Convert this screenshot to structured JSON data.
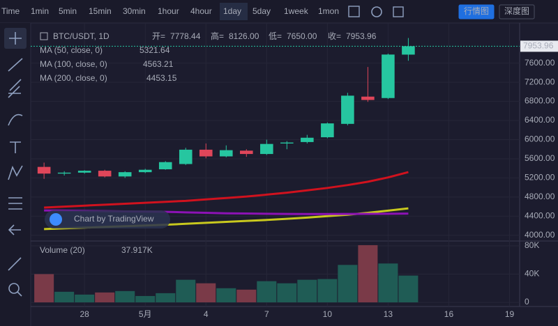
{
  "toolbar": {
    "time_label": "Time",
    "intervals": [
      "1min",
      "5min",
      "15min",
      "30min",
      "1hour",
      "4hour",
      "1day",
      "5day",
      "1week",
      "1mon"
    ],
    "active_interval": 6,
    "views": [
      "行情图",
      "深度图"
    ],
    "active_view": 0
  },
  "chart_data": {
    "type": "candlestick",
    "title": "BTC/USDT, 1D",
    "watermark": "Chart by TradingView",
    "ohlc_prefixes": {
      "open": "开=",
      "high": "高=",
      "low": "低=",
      "close": "收="
    },
    "last_value_labels": {
      "open": "7778.44",
      "high": "8126.00",
      "low": "7650.00",
      "close": "7953.96"
    },
    "x": [
      0,
      1,
      2,
      3,
      4,
      5,
      6,
      7,
      8,
      9,
      10,
      11,
      12,
      13,
      14,
      15,
      16,
      17,
      18
    ],
    "xlim": [
      -0.66,
      23.5
    ],
    "xticks": [
      {
        "value": 2,
        "label": "28"
      },
      {
        "value": 5,
        "label": "5月"
      },
      {
        "value": 8,
        "label": "4"
      },
      {
        "value": 11,
        "label": "7"
      },
      {
        "value": 14,
        "label": "10"
      },
      {
        "value": 17,
        "label": "13"
      },
      {
        "value": 20,
        "label": "16"
      },
      {
        "value": 23,
        "label": "19"
      }
    ],
    "open": [
      5430,
      5290,
      5310,
      5350,
      5230,
      5320,
      5380,
      5490,
      5790,
      5650,
      5770,
      5700,
      5920,
      5950,
      6050,
      6330,
      6900,
      6870,
      7778.44
    ],
    "high": [
      5520,
      5340,
      5360,
      5370,
      5340,
      5390,
      5550,
      5830,
      5920,
      5880,
      5800,
      6000,
      5970,
      6100,
      6360,
      6980,
      7520,
      7800,
      8126
    ],
    "low": [
      5180,
      5250,
      5290,
      5210,
      5200,
      5300,
      5370,
      5470,
      5610,
      5630,
      5640,
      5680,
      5800,
      5920,
      6030,
      6300,
      6790,
      6850,
      7650
    ],
    "close": [
      5290,
      5310,
      5350,
      5230,
      5320,
      5370,
      5530,
      5790,
      5650,
      5780,
      5700,
      5910,
      5940,
      6040,
      6340,
      6920,
      6830,
      7780,
      7953.96
    ],
    "up_color": "#26c6a0",
    "down_color": "#e0465a",
    "ylim": [
      3880,
      8440
    ],
    "yticks": [
      {
        "value": 4000,
        "label": "4000.00"
      },
      {
        "value": 4400,
        "label": "4400.00"
      },
      {
        "value": 4800,
        "label": "4800.00"
      },
      {
        "value": 5200,
        "label": "5200.00"
      },
      {
        "value": 5600,
        "label": "5600.00"
      },
      {
        "value": 6000,
        "label": "6000.00"
      },
      {
        "value": 6400,
        "label": "6400.00"
      },
      {
        "value": 6800,
        "label": "6800.00"
      },
      {
        "value": 7200,
        "label": "7200.00"
      },
      {
        "value": 7600,
        "label": "7600.00"
      }
    ],
    "grid": true,
    "series": [
      {
        "name": "MA (50, close, 0)",
        "color": "#d0121e",
        "values": [
          4580,
          4600,
          4620,
          4640,
          4660,
          4680,
          4700,
          4720,
          4750,
          4780,
          4810,
          4850,
          4890,
          4940,
          4990,
          5050,
          5120,
          5210,
          5321.64
        ]
      },
      {
        "name": "MA (100, close, 0)",
        "color": "#c8c81e",
        "values": [
          4130,
          4145,
          4160,
          4175,
          4190,
          4205,
          4220,
          4240,
          4260,
          4280,
          4300,
          4320,
          4345,
          4370,
          4400,
          4430,
          4470,
          4515,
          4563.21
        ]
      },
      {
        "name": "MA (200, close, 0)",
        "color": "#8c12b4",
        "values": [
          4520,
          4515,
          4510,
          4505,
          4500,
          4495,
          4490,
          4480,
          4470,
          4460,
          4455,
          4450,
          4447,
          4445,
          4445,
          4446,
          4448,
          4450,
          4453.15
        ]
      }
    ],
    "volume": {
      "name": "Volume (20)",
      "values": [
        40000,
        15000,
        11000,
        14000,
        16000,
        9000,
        13000,
        32000,
        27000,
        20000,
        18000,
        30000,
        27000,
        32000,
        33000,
        53000,
        81000,
        55000,
        37917
      ],
      "last_value_label": "37.917K",
      "up_color": "#1f5c55",
      "down_color": "#7a3a48",
      "ylim": [
        -5850,
        85850
      ],
      "yticks": [
        0,
        {
          "value": 40000,
          "label": "40K"
        },
        {
          "value": 80000,
          "label": "80K"
        }
      ]
    }
  }
}
